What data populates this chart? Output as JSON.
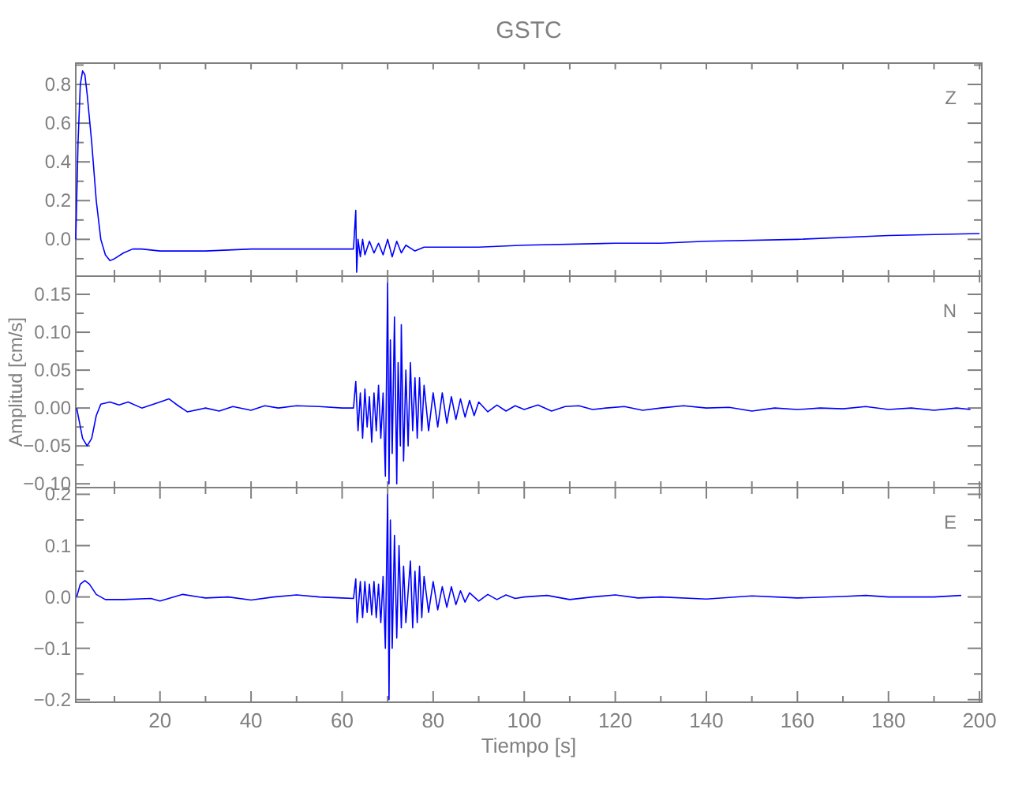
{
  "chart_data": [
    {
      "type": "line",
      "title": "GSTC",
      "annotations": [
        "Z"
      ],
      "color": "#0000ff",
      "line_style": "solid",
      "tick_labels": "y",
      "xlim": [
        1.5,
        200.5
      ],
      "ylim": [
        -0.19,
        0.91
      ],
      "xticks": [
        {
          "value": 10,
          "label": null
        },
        {
          "value": 20,
          "label": null
        },
        {
          "value": 30,
          "label": null
        },
        {
          "value": 40,
          "label": null
        },
        {
          "value": 50,
          "label": null
        },
        {
          "value": 60,
          "label": null
        },
        {
          "value": 70,
          "label": null
        },
        {
          "value": 80,
          "label": null
        },
        {
          "value": 90,
          "label": null
        },
        {
          "value": 100,
          "label": null
        },
        {
          "value": 110,
          "label": null
        },
        {
          "value": 120,
          "label": null
        },
        {
          "value": 130,
          "label": null
        },
        {
          "value": 140,
          "label": null
        },
        {
          "value": 150,
          "label": null
        },
        {
          "value": 160,
          "label": null
        },
        {
          "value": 170,
          "label": null
        },
        {
          "value": 180,
          "label": null
        },
        {
          "value": 190,
          "label": null
        },
        {
          "value": 200,
          "label": null
        }
      ],
      "yticks": [
        {
          "value": -0.1,
          "label": null
        },
        {
          "value": 0,
          "label": "0.0"
        },
        {
          "value": 0.1,
          "label": null
        },
        {
          "value": 0.2,
          "label": "0.2"
        },
        {
          "value": 0.3,
          "label": null
        },
        {
          "value": 0.4,
          "label": "0.4"
        },
        {
          "value": 0.5,
          "label": null
        },
        {
          "value": 0.6,
          "label": "0.6"
        },
        {
          "value": 0.7,
          "label": null
        },
        {
          "value": 0.8,
          "label": "0.8"
        },
        {
          "value": 0.9,
          "label": null
        }
      ],
      "x": [
        1.5,
        2,
        2.5,
        3,
        3.5,
        4,
        5,
        6,
        7,
        8,
        9,
        10,
        12,
        14,
        16,
        20,
        30,
        40,
        50,
        60,
        62.5,
        63,
        63.2,
        63.5,
        64,
        64.5,
        65,
        66,
        67,
        68,
        69,
        70,
        71,
        72,
        73,
        74,
        76,
        78,
        80,
        90,
        100,
        120,
        130,
        140,
        160,
        180,
        200
      ],
      "values": [
        0.0,
        0.5,
        0.8,
        0.87,
        0.85,
        0.75,
        0.5,
        0.2,
        0.0,
        -0.08,
        -0.11,
        -0.1,
        -0.07,
        -0.05,
        -0.05,
        -0.06,
        -0.06,
        -0.05,
        -0.05,
        -0.05,
        -0.05,
        0.15,
        -0.17,
        0.0,
        -0.09,
        0.0,
        -0.08,
        -0.01,
        -0.07,
        -0.02,
        -0.08,
        0.0,
        -0.09,
        -0.01,
        -0.07,
        -0.03,
        -0.06,
        -0.04,
        -0.04,
        -0.04,
        -0.03,
        -0.02,
        -0.02,
        -0.01,
        0.0,
        0.02,
        0.03
      ]
    },
    {
      "type": "line",
      "ylabel": "Amplitud [cm/s]",
      "annotations": [
        "N"
      ],
      "color": "#0000ff",
      "line_style": "solid",
      "tick_labels": "y",
      "xlim": [
        1.5,
        200.5
      ],
      "ylim": [
        -0.105,
        0.174
      ],
      "xticks": [
        {
          "value": 10,
          "label": null
        },
        {
          "value": 20,
          "label": null
        },
        {
          "value": 30,
          "label": null
        },
        {
          "value": 40,
          "label": null
        },
        {
          "value": 50,
          "label": null
        },
        {
          "value": 60,
          "label": null
        },
        {
          "value": 70,
          "label": null
        },
        {
          "value": 80,
          "label": null
        },
        {
          "value": 90,
          "label": null
        },
        {
          "value": 100,
          "label": null
        },
        {
          "value": 110,
          "label": null
        },
        {
          "value": 120,
          "label": null
        },
        {
          "value": 130,
          "label": null
        },
        {
          "value": 140,
          "label": null
        },
        {
          "value": 150,
          "label": null
        },
        {
          "value": 160,
          "label": null
        },
        {
          "value": 170,
          "label": null
        },
        {
          "value": 180,
          "label": null
        },
        {
          "value": 190,
          "label": null
        },
        {
          "value": 200,
          "label": null
        }
      ],
      "yticks": [
        {
          "value": -0.1,
          "label": "−0.10"
        },
        {
          "value": -0.075,
          "label": null
        },
        {
          "value": -0.05,
          "label": "−0.05"
        },
        {
          "value": -0.025,
          "label": null
        },
        {
          "value": 0,
          "label": "0.00"
        },
        {
          "value": 0.025,
          "label": null
        },
        {
          "value": 0.05,
          "label": "0.05"
        },
        {
          "value": 0.075,
          "label": null
        },
        {
          "value": 0.1,
          "label": "0.10"
        },
        {
          "value": 0.125,
          "label": null
        },
        {
          "value": 0.15,
          "label": "0.15"
        }
      ],
      "x": [
        1.7,
        3,
        4,
        5,
        6,
        7,
        9,
        11,
        13,
        16,
        20,
        22,
        24,
        26,
        30,
        33,
        36,
        40,
        43,
        46,
        50,
        55,
        60,
        62.5,
        63,
        63.5,
        64,
        64.5,
        65,
        65.5,
        66,
        66.5,
        67,
        67.5,
        68,
        68.5,
        69,
        69.5,
        70,
        70.3,
        70.6,
        71,
        71.5,
        72,
        72.3,
        72.8,
        73,
        73.5,
        74,
        74.5,
        75,
        75.5,
        76,
        76.5,
        77,
        77.5,
        78,
        79,
        80,
        81,
        82,
        83,
        84,
        85,
        86,
        87,
        88,
        89,
        90,
        92,
        94,
        96,
        98,
        100,
        103,
        106,
        109,
        112,
        115,
        118,
        122,
        126,
        130,
        135,
        140,
        145,
        150,
        155,
        160,
        165,
        170,
        175,
        180,
        185,
        190,
        195,
        198
      ],
      "values": [
        0.0,
        -0.04,
        -0.05,
        -0.04,
        -0.01,
        0.005,
        0.008,
        0.004,
        0.008,
        0.0,
        0.008,
        0.012,
        0.003,
        -0.005,
        0.0,
        -0.004,
        0.002,
        -0.003,
        0.003,
        0.0,
        0.003,
        0.002,
        0.0,
        0.0,
        0.035,
        -0.03,
        0.02,
        -0.04,
        0.025,
        -0.025,
        0.015,
        -0.045,
        0.02,
        -0.03,
        0.03,
        -0.04,
        0.02,
        -0.09,
        0.165,
        -0.1,
        0.09,
        -0.06,
        0.12,
        -0.1,
        0.06,
        -0.05,
        0.11,
        -0.07,
        0.05,
        -0.05,
        0.06,
        -0.03,
        0.04,
        -0.04,
        0.04,
        -0.03,
        0.03,
        -0.03,
        0.02,
        -0.025,
        0.02,
        -0.02,
        0.015,
        -0.015,
        0.012,
        -0.012,
        0.01,
        -0.01,
        0.008,
        -0.005,
        0.004,
        -0.004,
        0.003,
        -0.002,
        0.004,
        -0.004,
        0.002,
        0.003,
        -0.002,
        0.0,
        0.002,
        -0.003,
        0.0,
        0.003,
        0.0,
        0.001,
        -0.004,
        0.0,
        -0.002,
        0.0,
        -0.001,
        0.002,
        -0.002,
        0.0,
        -0.003,
        0.0,
        -0.002
      ]
    },
    {
      "type": "line",
      "xlabel": "Tiempo [s]",
      "annotations": [
        "E"
      ],
      "color": "#0000ff",
      "line_style": "solid",
      "xlim": [
        1.5,
        200.5
      ],
      "ylim": [
        -0.205,
        0.213
      ],
      "xticks": [
        {
          "value": 10,
          "label": null
        },
        {
          "value": 20,
          "label": "20"
        },
        {
          "value": 30,
          "label": null
        },
        {
          "value": 40,
          "label": "40"
        },
        {
          "value": 50,
          "label": null
        },
        {
          "value": 60,
          "label": "60"
        },
        {
          "value": 70,
          "label": null
        },
        {
          "value": 80,
          "label": "80"
        },
        {
          "value": 90,
          "label": null
        },
        {
          "value": 100,
          "label": "100"
        },
        {
          "value": 110,
          "label": null
        },
        {
          "value": 120,
          "label": "120"
        },
        {
          "value": 130,
          "label": null
        },
        {
          "value": 140,
          "label": "140"
        },
        {
          "value": 150,
          "label": null
        },
        {
          "value": 160,
          "label": "160"
        },
        {
          "value": 170,
          "label": null
        },
        {
          "value": 180,
          "label": "180"
        },
        {
          "value": 190,
          "label": null
        },
        {
          "value": 200,
          "label": "200"
        }
      ],
      "yticks": [
        {
          "value": -0.2,
          "label": "−0.2"
        },
        {
          "value": -0.15,
          "label": null
        },
        {
          "value": -0.1,
          "label": "−0.1"
        },
        {
          "value": -0.05,
          "label": null
        },
        {
          "value": 0,
          "label": "0.0"
        },
        {
          "value": 0.05,
          "label": null
        },
        {
          "value": 0.1,
          "label": "0.1"
        },
        {
          "value": 0.15,
          "label": null
        },
        {
          "value": 0.2,
          "label": "0.2"
        }
      ],
      "x": [
        1.7,
        2.5,
        3.5,
        4.5,
        6,
        8,
        12,
        18,
        20,
        25,
        30,
        35,
        40,
        45,
        50,
        55,
        60,
        62.5,
        63,
        63.3,
        64,
        64.5,
        65,
        65.5,
        66,
        66.5,
        67,
        67.5,
        68,
        68.5,
        69,
        69.5,
        70,
        70.3,
        70.6,
        71,
        71.5,
        72,
        72.5,
        73,
        73.5,
        74,
        75,
        75.5,
        76,
        76.5,
        77,
        77.5,
        78,
        79,
        80,
        81,
        82,
        83,
        84,
        85,
        86,
        87,
        88,
        90,
        92,
        94,
        96,
        98,
        100,
        105,
        110,
        115,
        120,
        125,
        130,
        140,
        150,
        160,
        170,
        175,
        180,
        190,
        196
      ],
      "values": [
        0.0,
        0.025,
        0.032,
        0.025,
        0.005,
        -0.005,
        -0.005,
        -0.003,
        -0.008,
        0.005,
        -0.002,
        0.0,
        -0.006,
        0.0,
        0.004,
        0.0,
        -0.002,
        -0.003,
        0.035,
        -0.05,
        0.03,
        -0.04,
        0.03,
        -0.03,
        0.025,
        -0.035,
        0.03,
        -0.04,
        0.025,
        -0.05,
        0.04,
        -0.1,
        0.2,
        -0.2,
        0.15,
        -0.1,
        0.12,
        -0.08,
        0.1,
        -0.06,
        0.06,
        -0.05,
        0.07,
        -0.06,
        0.05,
        -0.05,
        0.06,
        -0.04,
        0.04,
        -0.03,
        0.03,
        -0.025,
        0.02,
        -0.02,
        0.02,
        -0.015,
        0.012,
        -0.01,
        0.008,
        -0.008,
        0.005,
        -0.005,
        0.004,
        -0.003,
        0.0,
        0.003,
        -0.005,
        0.0,
        0.004,
        -0.002,
        0.0,
        -0.004,
        0.002,
        -0.002,
        0.001,
        0.003,
        0.0,
        0.0,
        0.003
      ]
    }
  ]
}
